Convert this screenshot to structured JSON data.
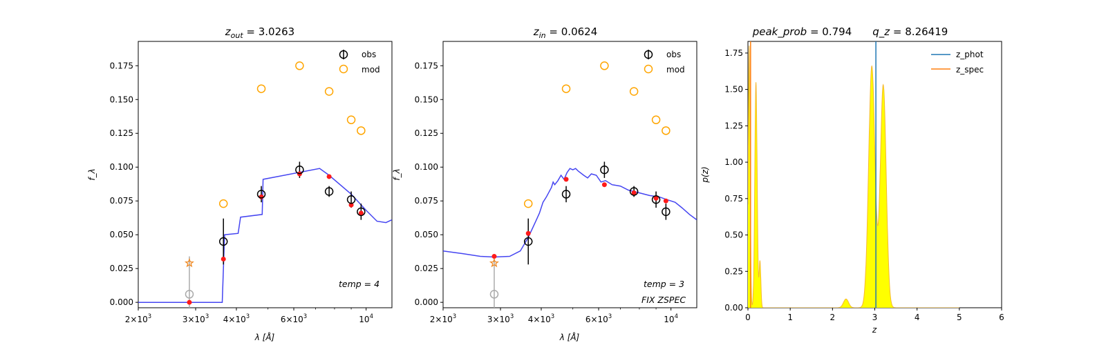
{
  "colors": {
    "obs": "#000000",
    "mod": "#ffa500",
    "model_curve": "#3a3af0",
    "model_points": "#ff1a1a",
    "upper_limit": "#aaaaaa",
    "star": "#f08a24",
    "z_phot": "#1f77b4",
    "z_spec": "#ff7f0e",
    "pdf_fill": "#ffff00"
  },
  "chart_data": [
    {
      "type": "scatter",
      "title": "z_out = 3.0263",
      "title_lhs": "z",
      "title_sub": "out",
      "title_rhs": " = 3.0263",
      "xlabel": "λ [Å]",
      "ylabel": "f_λ",
      "xscale": "log",
      "xlim": [
        2000,
        12000
      ],
      "ylim": [
        -0.004,
        0.193
      ],
      "xticks": [
        {
          "v": 2000,
          "m": "2",
          "e": "3"
        },
        {
          "v": 3000,
          "m": "3",
          "e": "3"
        },
        {
          "v": 4000,
          "m": "4",
          "e": "3"
        },
        {
          "v": 6000,
          "m": "6",
          "e": "3"
        },
        {
          "v": 10000,
          "m": "",
          "e": "4"
        }
      ],
      "yticks": [
        "0.000",
        "0.025",
        "0.050",
        "0.075",
        "0.100",
        "0.125",
        "0.150",
        "0.175"
      ],
      "legend": {
        "location": "upper-right",
        "entries": [
          "obs",
          "mod"
        ]
      },
      "annotations": [
        "temp = 4"
      ],
      "series": [
        {
          "name": "obs",
          "kind": "errorbar",
          "points": [
            {
              "x": 3650,
              "y": 0.045,
              "err": 0.017
            },
            {
              "x": 4770,
              "y": 0.08,
              "err": 0.006
            },
            {
              "x": 6250,
              "y": 0.098,
              "err": 0.006
            },
            {
              "x": 7700,
              "y": 0.082,
              "err": 0.004
            },
            {
              "x": 9000,
              "y": 0.076,
              "err": 0.006
            },
            {
              "x": 9650,
              "y": 0.067,
              "err": 0.006
            }
          ]
        },
        {
          "name": "mod",
          "kind": "open_circle",
          "points": [
            {
              "x": 3650,
              "y": 0.073
            },
            {
              "x": 4770,
              "y": 0.158
            },
            {
              "x": 6250,
              "y": 0.175
            },
            {
              "x": 7700,
              "y": 0.156
            },
            {
              "x": 9000,
              "y": 0.135
            },
            {
              "x": 9650,
              "y": 0.127
            }
          ]
        },
        {
          "name": "",
          "kind": "upper_limit",
          "points": [
            {
              "x": 2870,
              "y": 0.006,
              "top": 0.034
            }
          ]
        },
        {
          "name": "",
          "kind": "star",
          "points": [
            {
              "x": 2870,
              "y": 0.029
            }
          ]
        },
        {
          "name": "",
          "kind": "model_points",
          "points": [
            {
              "x": 2870,
              "y": 0.0
            },
            {
              "x": 3650,
              "y": 0.032
            },
            {
              "x": 4770,
              "y": 0.078
            },
            {
              "x": 6250,
              "y": 0.095
            },
            {
              "x": 7700,
              "y": 0.093
            },
            {
              "x": 9000,
              "y": 0.072
            },
            {
              "x": 9650,
              "y": 0.066
            }
          ]
        },
        {
          "name": "",
          "kind": "model_curve",
          "points": [
            [
              2000,
              0.0
            ],
            [
              3620,
              0.0
            ],
            [
              3680,
              0.05
            ],
            [
              4050,
              0.051
            ],
            [
              4120,
              0.063
            ],
            [
              4800,
              0.065
            ],
            [
              4830,
              0.091
            ],
            [
              7200,
              0.099
            ],
            [
              7700,
              0.094
            ],
            [
              9000,
              0.08
            ],
            [
              10000,
              0.068
            ],
            [
              10800,
              0.06
            ],
            [
              11500,
              0.059
            ],
            [
              12000,
              0.061
            ]
          ]
        }
      ]
    },
    {
      "type": "scatter",
      "title": "z_in = 0.0624",
      "title_lhs": "z",
      "title_sub": "in",
      "title_rhs": " = 0.0624",
      "xlabel": "λ [Å]",
      "ylabel": "f_λ",
      "xscale": "log",
      "xlim": [
        2000,
        12000
      ],
      "ylim": [
        -0.004,
        0.193
      ],
      "xticks": [
        {
          "v": 2000,
          "m": "2",
          "e": "3"
        },
        {
          "v": 3000,
          "m": "3",
          "e": "3"
        },
        {
          "v": 4000,
          "m": "4",
          "e": "3"
        },
        {
          "v": 6000,
          "m": "6",
          "e": "3"
        },
        {
          "v": 10000,
          "m": "",
          "e": "4"
        }
      ],
      "yticks": [
        "0.000",
        "0.025",
        "0.050",
        "0.075",
        "0.100",
        "0.125",
        "0.150",
        "0.175"
      ],
      "legend": {
        "location": "upper-right",
        "entries": [
          "obs",
          "mod"
        ]
      },
      "annotations": [
        "temp = 3",
        "FIX ZSPEC"
      ],
      "series": [
        {
          "name": "obs",
          "kind": "errorbar",
          "points": [
            {
              "x": 3650,
              "y": 0.045,
              "err": 0.017
            },
            {
              "x": 4770,
              "y": 0.08,
              "err": 0.006
            },
            {
              "x": 6250,
              "y": 0.098,
              "err": 0.006
            },
            {
              "x": 7700,
              "y": 0.082,
              "err": 0.004
            },
            {
              "x": 9000,
              "y": 0.076,
              "err": 0.006
            },
            {
              "x": 9650,
              "y": 0.067,
              "err": 0.006
            }
          ]
        },
        {
          "name": "mod",
          "kind": "open_circle",
          "points": [
            {
              "x": 3650,
              "y": 0.073
            },
            {
              "x": 4770,
              "y": 0.158
            },
            {
              "x": 6250,
              "y": 0.175
            },
            {
              "x": 7700,
              "y": 0.156
            },
            {
              "x": 9000,
              "y": 0.135
            },
            {
              "x": 9650,
              "y": 0.127
            }
          ]
        },
        {
          "name": "",
          "kind": "upper_limit",
          "points": [
            {
              "x": 2870,
              "y": 0.006,
              "top": 0.033
            }
          ]
        },
        {
          "name": "",
          "kind": "star",
          "points": [
            {
              "x": 2870,
              "y": 0.029
            }
          ]
        },
        {
          "name": "",
          "kind": "model_points",
          "points": [
            {
              "x": 2870,
              "y": 0.034
            },
            {
              "x": 3650,
              "y": 0.051
            },
            {
              "x": 4770,
              "y": 0.091
            },
            {
              "x": 6250,
              "y": 0.087
            },
            {
              "x": 7700,
              "y": 0.081
            },
            {
              "x": 9000,
              "y": 0.077
            },
            {
              "x": 9650,
              "y": 0.075
            }
          ]
        },
        {
          "name": "",
          "kind": "model_curve",
          "points": [
            [
              2000,
              0.038
            ],
            [
              2300,
              0.036
            ],
            [
              2600,
              0.034
            ],
            [
              2870,
              0.0335
            ],
            [
              3200,
              0.034
            ],
            [
              3450,
              0.038
            ],
            [
              3650,
              0.048
            ],
            [
              3850,
              0.06
            ],
            [
              3950,
              0.066
            ],
            [
              4050,
              0.074
            ],
            [
              4150,
              0.078
            ],
            [
              4300,
              0.085
            ],
            [
              4350,
              0.089
            ],
            [
              4400,
              0.087
            ],
            [
              4500,
              0.09
            ],
            [
              4600,
              0.094
            ],
            [
              4700,
              0.091
            ],
            [
              4800,
              0.096
            ],
            [
              4900,
              0.099
            ],
            [
              5000,
              0.098
            ],
            [
              5100,
              0.099
            ],
            [
              5200,
              0.097
            ],
            [
              5400,
              0.094
            ],
            [
              5550,
              0.092
            ],
            [
              5700,
              0.095
            ],
            [
              5900,
              0.094
            ],
            [
              6100,
              0.089
            ],
            [
              6300,
              0.09
            ],
            [
              6600,
              0.087
            ],
            [
              7000,
              0.086
            ],
            [
              7400,
              0.083
            ],
            [
              8000,
              0.081
            ],
            [
              8600,
              0.079
            ],
            [
              9200,
              0.078
            ],
            [
              9700,
              0.076
            ],
            [
              10300,
              0.074
            ],
            [
              10800,
              0.07
            ],
            [
              11400,
              0.065
            ],
            [
              12000,
              0.061
            ]
          ]
        }
      ]
    },
    {
      "type": "area",
      "title": "peak_prob = 0.794      q_z = 8.26419",
      "title_a": "peak_prob",
      "title_a_val": " = 0.794",
      "title_b": "q_z",
      "title_b_val": " = 8.26419",
      "xlabel": "z",
      "ylabel": "p(z)",
      "xlim": [
        0,
        6
      ],
      "ylim": [
        0,
        1.83
      ],
      "xticks": [
        "0",
        "1",
        "2",
        "3",
        "4",
        "5",
        "6"
      ],
      "yticks": [
        "0.00",
        "0.25",
        "0.50",
        "0.75",
        "1.00",
        "1.25",
        "1.50",
        "1.75"
      ],
      "legend": {
        "location": "upper-right",
        "entries": [
          "z_phot",
          "z_spec"
        ]
      },
      "z_phot": 3.0263,
      "z_spec": 0.0624,
      "pdf_range": [
        0,
        5
      ],
      "pdf_components": [
        {
          "mu": 0.03,
          "sigma": 0.022,
          "amp": 1.8
        },
        {
          "mu": 0.19,
          "sigma": 0.028,
          "amp": 1.55
        },
        {
          "mu": 0.285,
          "sigma": 0.02,
          "amp": 0.32
        },
        {
          "mu": 2.32,
          "sigma": 0.06,
          "amp": 0.06
        },
        {
          "mu": 2.93,
          "sigma": 0.075,
          "amp": 1.66
        },
        {
          "mu": 3.2,
          "sigma": 0.07,
          "amp": 1.53
        }
      ]
    }
  ]
}
